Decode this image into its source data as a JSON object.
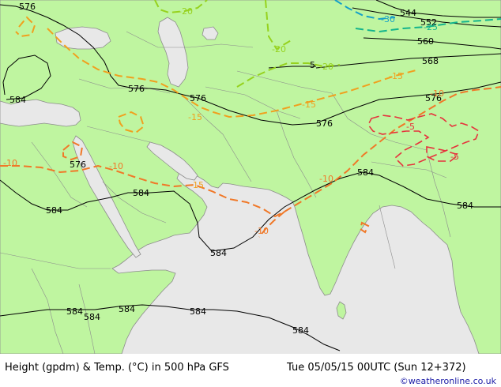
{
  "footer": {
    "title": "Height (gpdm) & Temp. (°C) in 500 hPa GFS",
    "datetime": "Tue 05/05/15 00UTC (Sun 12+372)",
    "credit": "©weatheronline.co.uk"
  },
  "colors": {
    "land": "#bff5a0",
    "sea": "#e8e8e8",
    "border": "#8c8c8c",
    "height_contour": "#000000",
    "temp_minus_5": "#e6323c",
    "temp_minus_10": "#f07828",
    "temp_minus_15": "#f0a01e",
    "temp_minus_20": "#96d21e",
    "temp_minus_25": "#14b48c",
    "temp_minus_30": "#14a0c8"
  },
  "height_labels": [
    "576",
    "584",
    "576",
    "576",
    "576",
    "584",
    "584",
    "584",
    "584",
    "584",
    "584",
    "584",
    "584",
    "584",
    "584",
    "568",
    "576",
    "560",
    "552",
    "544",
    "5"
  ],
  "temp_labels": [
    "-20",
    "-20",
    "-20",
    "-25",
    "-30",
    "-15",
    "-15",
    "-15",
    "-15",
    "-10",
    "-10",
    "-10",
    "-10",
    "-10",
    "-5",
    "-5"
  ]
}
